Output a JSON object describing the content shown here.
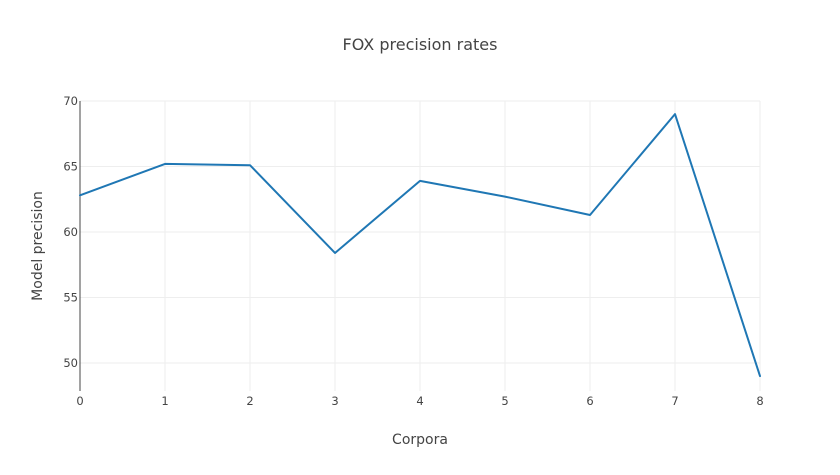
{
  "chart_data": {
    "type": "line",
    "title": "FOX precision rates",
    "xlabel": "Corpora",
    "ylabel": "Model precision",
    "x": [
      0,
      1,
      2,
      3,
      4,
      5,
      6,
      7,
      8
    ],
    "series": [
      {
        "values": [
          62.8,
          65.2,
          65.1,
          58.4,
          63.9,
          62.7,
          61.3,
          69.0,
          49.0
        ],
        "color": "#1f77b4"
      }
    ],
    "xlim": [
      0,
      8
    ],
    "ylim": [
      48,
      70
    ],
    "x_ticks": [
      0,
      1,
      2,
      3,
      4,
      5,
      6,
      7,
      8
    ],
    "x_tick_labels": [
      "0",
      "1",
      "2",
      "3",
      "4",
      "5",
      "6",
      "7",
      "8"
    ],
    "y_ticks": [
      50,
      55,
      60,
      65,
      70
    ],
    "y_tick_labels": [
      "50",
      "55",
      "60",
      "65",
      "70"
    ],
    "grid": true,
    "legend": "none"
  }
}
